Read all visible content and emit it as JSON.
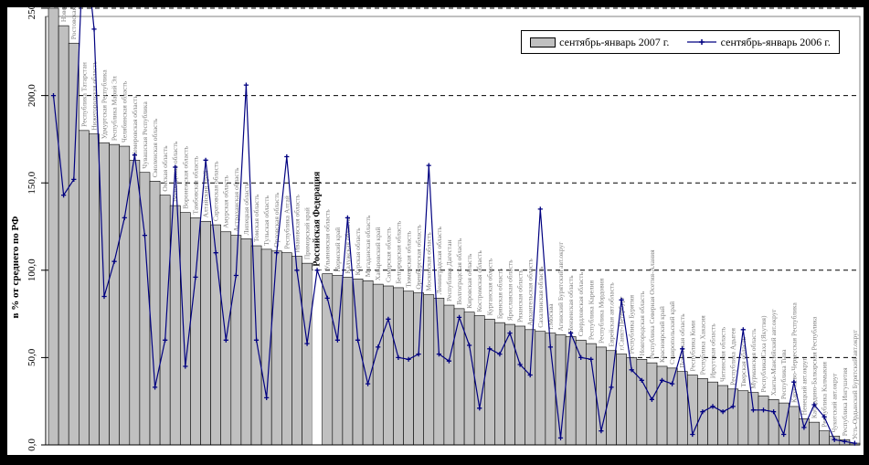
{
  "chart_data": {
    "type": "bar",
    "title": "",
    "ylabel": "в % от среднего по РФ",
    "ylim": [
      0,
      250
    ],
    "yticks": [
      0,
      50,
      100,
      150,
      200,
      250
    ],
    "ytick_labels": [
      "0,0",
      "50,0",
      "100,0",
      "150,0",
      "200,0",
      "250,0"
    ],
    "grid": "dashed horizontal lines at each 50",
    "legend_position": "top-right inside plot",
    "highlight_category": "Российская Федерация",
    "highlight_value": 100,
    "categories": [
      "Краснодарский край",
      "Новосибирская область",
      "Ростовская область",
      "Республика Татарстан",
      "Нижегородская область",
      "Удмуртская Республика",
      "Республика Марий Эл",
      "Челябинская область",
      "Кемеровская область",
      "Чувашская Республика",
      "Смоленская область",
      "Омская область",
      "Вологодская область",
      "Воронежская область",
      "Тамбовская область",
      "Алтайский край",
      "Саратовская область",
      "Амурская область",
      "Астраханская область",
      "Липецкая область",
      "Томская область",
      "Тульская область",
      "Орловская область",
      "Республика Алтай",
      "Ивановская область",
      "Приморский край",
      "Российская Федерация",
      "Ульяновская область",
      "Пермский край",
      "Калужская область",
      "Курская область",
      "Магаданская область",
      "Хабаровский край",
      "Самарская область",
      "Белгородская область",
      "Тюменская область",
      "Оренбургская область",
      "Московская область",
      "Ленинградская область",
      "Республика Дагестан",
      "Волгоградская область",
      "Кировская область",
      "Костромская область",
      "Курганская область",
      "Брянская область",
      "Ярославская область",
      "Рязанская область",
      "Архангельская область",
      "Сахалинская область",
      "г.Москва",
      "Агинский Бурятский авт.округ",
      "Пензенская область",
      "Свердловская область",
      "Республика Карелия",
      "Республика Мордовия",
      "Еврейская авт.область",
      "г.Санкт-Петербург",
      "Республика Бурятия",
      "Новгородская область",
      "Республика Северная Осетия-Алания",
      "Красноярский край",
      "Ставропольский край",
      "Псковская область",
      "Республика Коми",
      "Республика Хакасия",
      "Иркутская область",
      "Читинская область",
      "Республика Адыгея",
      "Тверская область",
      "Мурманская область",
      "Республика Саха (Якутия)",
      "Ханты-Мансийский авт.округ",
      "Республика Тыва",
      "Карачаево-Черкесская Республика",
      "Ненецкий авт.округ",
      "Кабардино-Балкарская Республика",
      "Республика Калмыкия",
      "Чукотский авт.округ",
      "Республика Ингушетия",
      "Усть-Ордынский Бурятский авт.округ"
    ],
    "series": [
      {
        "name": "сентябрь-январь 2007 г.",
        "type": "bar",
        "color": "#c0c0c0",
        "values": [
          250,
          240,
          230,
          180,
          178,
          173,
          172,
          171,
          163,
          156,
          151,
          143,
          137,
          133,
          130,
          128,
          126,
          122,
          120,
          118,
          114,
          112,
          111,
          110,
          108,
          104,
          100,
          98,
          97,
          96,
          95,
          94,
          92,
          91,
          90,
          88,
          87,
          86,
          84,
          80,
          78,
          76,
          74,
          72,
          70,
          69,
          68,
          66,
          65,
          64,
          63,
          62,
          60,
          58,
          56,
          54,
          52,
          50,
          49,
          47,
          45,
          44,
          42,
          40,
          38,
          36,
          34,
          32,
          31,
          30,
          28,
          26,
          24,
          22,
          15,
          13,
          8,
          5,
          3,
          1
        ]
      },
      {
        "name": "сентябрь-январь 2006 г.",
        "type": "line",
        "color": "#000080",
        "marker": "plus",
        "values": [
          200,
          143,
          152,
          295,
          238,
          85,
          105,
          130,
          166,
          120,
          33,
          60,
          159,
          45,
          96,
          163,
          110,
          60,
          97,
          206,
          60,
          27,
          110,
          165,
          100,
          58,
          100,
          84,
          60,
          130,
          60,
          35,
          56,
          72,
          50,
          49,
          52,
          160,
          52,
          48,
          73,
          57,
          21,
          55,
          52,
          64,
          46,
          40,
          135,
          56,
          4,
          64,
          50,
          49,
          8,
          33,
          83,
          43,
          37,
          26,
          37,
          35,
          55,
          6,
          19,
          22,
          19,
          22,
          66,
          20,
          20,
          19,
          6,
          36,
          10,
          23,
          16,
          3,
          2,
          1
        ]
      }
    ]
  },
  "legend": {
    "bar_label": "сентябрь-январь 2007 г.",
    "line_label": "сентябрь-январь 2006 г."
  },
  "colors": {
    "bar_fill": "#c0c0c0",
    "bar_stroke": "#000000",
    "line": "#000080",
    "region_label": "#808080",
    "highlight_label": "#000000",
    "frame": "#808080",
    "axis": "#000000",
    "panel_bg": "#ffffff",
    "page_bg": "#000000"
  }
}
